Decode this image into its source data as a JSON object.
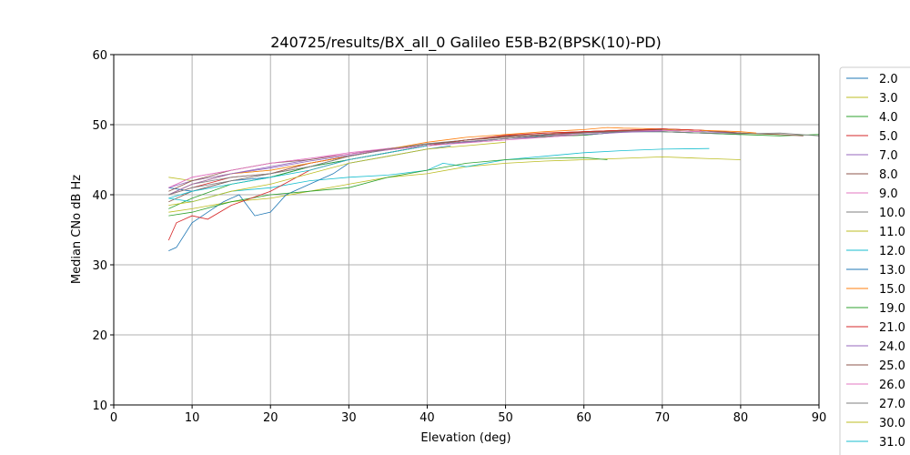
{
  "chart_data": {
    "type": "line",
    "title": "240725/results/BX_all_0 Galileo E5B-B2(BPSK(10)-PD)",
    "xlabel": "Elevation (deg)",
    "ylabel": "Median CNo dB Hz",
    "xlim": [
      0,
      90
    ],
    "ylim": [
      10,
      60
    ],
    "xticks": [
      0,
      10,
      20,
      30,
      40,
      50,
      60,
      70,
      80,
      90
    ],
    "yticks": [
      10,
      20,
      30,
      40,
      50,
      60
    ],
    "grid": true,
    "legend_position": "right (partially cut off)",
    "series": [
      {
        "name": "2.0",
        "color": "#1f77b4",
        "points": [
          [
            7,
            41
          ],
          [
            10,
            40.5
          ],
          [
            15,
            42
          ],
          [
            20,
            42.5
          ],
          [
            25,
            44
          ],
          [
            30,
            45
          ],
          [
            35,
            46
          ],
          [
            40,
            47
          ],
          [
            45,
            47.5
          ],
          [
            50,
            48
          ],
          [
            55,
            48.5
          ],
          [
            60,
            48.5
          ],
          [
            65,
            49
          ],
          [
            70,
            49
          ],
          [
            75,
            48.8
          ],
          [
            80,
            48.6
          ]
        ]
      },
      {
        "name": "3.0",
        "color": "#bcbd22",
        "points": [
          [
            7,
            42.5
          ],
          [
            10,
            42
          ],
          [
            15,
            43
          ],
          [
            20,
            43.5
          ],
          [
            25,
            44.5
          ],
          [
            30,
            45.5
          ],
          [
            35,
            46.5
          ],
          [
            40,
            47.2
          ],
          [
            45,
            47.8
          ],
          [
            50,
            48.2
          ],
          [
            55,
            48.6
          ],
          [
            60,
            49
          ],
          [
            65,
            49.2
          ],
          [
            70,
            49.3
          ],
          [
            75,
            49
          ],
          [
            80,
            48.8
          ],
          [
            85,
            48.6
          ]
        ]
      },
      {
        "name": "4.0",
        "color": "#2ca02c",
        "points": [
          [
            7,
            38
          ],
          [
            10,
            39.5
          ],
          [
            15,
            41.5
          ],
          [
            20,
            42.5
          ],
          [
            25,
            44
          ],
          [
            30,
            45
          ],
          [
            35,
            46
          ],
          [
            40,
            47
          ],
          [
            45,
            47.5
          ],
          [
            50,
            48
          ],
          [
            55,
            48.3
          ],
          [
            60,
            48.5
          ],
          [
            65,
            49
          ],
          [
            70,
            49
          ],
          [
            75,
            48.8
          ],
          [
            80,
            48.6
          ],
          [
            85,
            48.4
          ],
          [
            90,
            48.6
          ]
        ]
      },
      {
        "name": "5.0",
        "color": "#d62728",
        "points": [
          [
            7,
            40
          ],
          [
            10,
            41
          ],
          [
            15,
            42.5
          ],
          [
            20,
            43
          ],
          [
            25,
            44.5
          ],
          [
            30,
            45.5
          ],
          [
            35,
            46.5
          ],
          [
            40,
            47.2
          ],
          [
            45,
            47.8
          ],
          [
            50,
            48.2
          ],
          [
            55,
            48.6
          ],
          [
            60,
            49
          ],
          [
            65,
            49.2
          ],
          [
            70,
            49.4
          ],
          [
            75,
            49.2
          ],
          [
            80,
            48.8
          ]
        ]
      },
      {
        "name": "7.0",
        "color": "#9467bd",
        "points": [
          [
            7,
            41
          ],
          [
            10,
            42
          ],
          [
            15,
            43
          ],
          [
            20,
            44
          ],
          [
            25,
            45
          ],
          [
            30,
            45.8
          ],
          [
            35,
            46.6
          ],
          [
            40,
            47.2
          ],
          [
            45,
            47.6
          ],
          [
            50,
            48
          ],
          [
            55,
            48.4
          ],
          [
            60,
            48.8
          ],
          [
            65,
            49
          ],
          [
            70,
            49.2
          ],
          [
            75,
            49
          ],
          [
            80,
            48.8
          ]
        ]
      },
      {
        "name": "8.0",
        "color": "#8c564b",
        "points": [
          [
            7,
            39
          ],
          [
            10,
            40.5
          ],
          [
            15,
            42
          ],
          [
            20,
            43
          ],
          [
            25,
            44.5
          ],
          [
            30,
            45.5
          ],
          [
            35,
            46.5
          ],
          [
            40,
            47.2
          ],
          [
            45,
            47.8
          ],
          [
            50,
            48.4
          ],
          [
            55,
            48.8
          ],
          [
            60,
            49
          ],
          [
            65,
            49.2
          ],
          [
            70,
            49.4
          ],
          [
            75,
            49.2
          ],
          [
            80,
            48.8
          ],
          [
            85,
            48.6
          ],
          [
            88,
            48.4
          ]
        ]
      },
      {
        "name": "9.0",
        "color": "#e377c2",
        "points": [
          [
            7,
            41
          ],
          [
            10,
            42.5
          ],
          [
            15,
            43.5
          ],
          [
            20,
            44.5
          ],
          [
            25,
            45.2
          ],
          [
            30,
            46
          ],
          [
            35,
            46.6
          ],
          [
            40,
            47.2
          ],
          [
            45,
            47.6
          ],
          [
            50,
            48
          ],
          [
            55,
            48.4
          ],
          [
            60,
            48.8
          ],
          [
            65,
            49
          ],
          [
            70,
            49.2
          ],
          [
            75,
            49
          ]
        ]
      },
      {
        "name": "10.0",
        "color": "#7f7f7f",
        "points": [
          [
            7,
            40
          ],
          [
            10,
            41.5
          ],
          [
            15,
            42.5
          ],
          [
            20,
            43
          ],
          [
            25,
            44
          ],
          [
            30,
            45.5
          ],
          [
            35,
            46.5
          ],
          [
            40,
            47.3
          ],
          [
            45,
            47.8
          ],
          [
            50,
            48.2
          ],
          [
            55,
            48.6
          ],
          [
            60,
            48.8
          ],
          [
            65,
            49
          ],
          [
            70,
            49
          ],
          [
            75,
            48.8
          ],
          [
            80,
            48.7
          ],
          [
            85,
            48.8
          ],
          [
            90,
            48.4
          ]
        ]
      },
      {
        "name": "11.0",
        "color": "#bcbd22",
        "points": [
          [
            7,
            37.5
          ],
          [
            10,
            38
          ],
          [
            15,
            39
          ],
          [
            20,
            39.5
          ],
          [
            25,
            40.5
          ],
          [
            30,
            41.5
          ],
          [
            35,
            42.5
          ],
          [
            40,
            43
          ],
          [
            45,
            44
          ],
          [
            50,
            44.5
          ],
          [
            55,
            44.8
          ],
          [
            60,
            45
          ],
          [
            65,
            45.2
          ],
          [
            70,
            45.4
          ],
          [
            75,
            45.2
          ],
          [
            80,
            45
          ]
        ]
      },
      {
        "name": "12.0",
        "color": "#17becf",
        "points": [
          [
            7,
            39.5
          ],
          [
            10,
            39
          ],
          [
            15,
            40.5
          ],
          [
            20,
            41
          ],
          [
            25,
            42
          ],
          [
            30,
            42.5
          ],
          [
            35,
            42.8
          ],
          [
            40,
            43.5
          ],
          [
            42,
            44.5
          ],
          [
            45,
            44
          ],
          [
            50,
            45
          ],
          [
            55,
            45.5
          ],
          [
            60,
            46
          ],
          [
            65,
            46.3
          ],
          [
            70,
            46.5
          ],
          [
            76,
            46.6
          ]
        ]
      },
      {
        "name": "13.0",
        "color": "#1f77b4",
        "points": [
          [
            7,
            32
          ],
          [
            8,
            32.5
          ],
          [
            10,
            36
          ],
          [
            12,
            37.5
          ],
          [
            14,
            39
          ],
          [
            16,
            40
          ],
          [
            18,
            37
          ],
          [
            20,
            37.5
          ],
          [
            22,
            40
          ],
          [
            25,
            41.5
          ],
          [
            28,
            43
          ],
          [
            30,
            44.5
          ],
          [
            35,
            45.5
          ],
          [
            40,
            46.5
          ],
          [
            43,
            47
          ]
        ]
      },
      {
        "name": "15.0",
        "color": "#ff7f0e",
        "points": [
          [
            7,
            40
          ],
          [
            10,
            41.5
          ],
          [
            15,
            43
          ],
          [
            20,
            43.5
          ],
          [
            25,
            44.5
          ],
          [
            30,
            45.5
          ],
          [
            35,
            46.5
          ],
          [
            40,
            47.5
          ],
          [
            45,
            48.2
          ],
          [
            50,
            48.6
          ],
          [
            55,
            49
          ],
          [
            60,
            49.3
          ],
          [
            63,
            49.6
          ],
          [
            65,
            49.5
          ],
          [
            70,
            49.4
          ],
          [
            75,
            49.2
          ],
          [
            80,
            49
          ],
          [
            82,
            48.8
          ]
        ]
      },
      {
        "name": "19.0",
        "color": "#2ca02c",
        "points": [
          [
            7,
            37
          ],
          [
            10,
            37.5
          ],
          [
            15,
            39
          ],
          [
            20,
            40
          ],
          [
            25,
            40.5
          ],
          [
            30,
            41
          ],
          [
            35,
            42.5
          ],
          [
            40,
            43.5
          ],
          [
            45,
            44.5
          ],
          [
            50,
            45
          ],
          [
            55,
            45.2
          ],
          [
            60,
            45.3
          ],
          [
            63,
            45
          ]
        ]
      },
      {
        "name": "21.0",
        "color": "#d62728",
        "points": [
          [
            7,
            33.5
          ],
          [
            8,
            36
          ],
          [
            10,
            37
          ],
          [
            12,
            36.5
          ],
          [
            15,
            38.5
          ],
          [
            20,
            40.5
          ],
          [
            25,
            43.5
          ],
          [
            30,
            45
          ],
          [
            35,
            46
          ],
          [
            40,
            47
          ],
          [
            45,
            47.8
          ],
          [
            50,
            48.5
          ],
          [
            55,
            48.8
          ],
          [
            60,
            49
          ],
          [
            65,
            49.2
          ],
          [
            70,
            49.4
          ],
          [
            75,
            49.2
          ]
        ]
      },
      {
        "name": "24.0",
        "color": "#9467bd",
        "points": [
          [
            7,
            40
          ],
          [
            10,
            41.5
          ],
          [
            15,
            43
          ],
          [
            20,
            43.8
          ],
          [
            25,
            44.8
          ],
          [
            30,
            45.6
          ],
          [
            35,
            46.4
          ],
          [
            40,
            47
          ],
          [
            45,
            47.5
          ],
          [
            50,
            48
          ],
          [
            55,
            48.2
          ],
          [
            60,
            48.6
          ],
          [
            65,
            48.9
          ],
          [
            70,
            49.1
          ]
        ]
      },
      {
        "name": "25.0",
        "color": "#8c564b",
        "points": [
          [
            7,
            40.5
          ],
          [
            10,
            42
          ],
          [
            15,
            43.5
          ],
          [
            20,
            44.5
          ],
          [
            25,
            45
          ],
          [
            30,
            45.8
          ],
          [
            35,
            46.5
          ],
          [
            40,
            47.2
          ],
          [
            45,
            47.8
          ],
          [
            50,
            48.3
          ],
          [
            55,
            48.6
          ],
          [
            60,
            48.9
          ],
          [
            65,
            49.1
          ],
          [
            70,
            49.3
          ]
        ]
      },
      {
        "name": "26.0",
        "color": "#e377c2",
        "points": [
          [
            7,
            41
          ],
          [
            10,
            42.5
          ],
          [
            15,
            43.5
          ],
          [
            20,
            44.5
          ],
          [
            25,
            45.2
          ],
          [
            30,
            45.8
          ],
          [
            35,
            46.4
          ],
          [
            40,
            47
          ],
          [
            45,
            47.4
          ],
          [
            50,
            47.8
          ],
          [
            55,
            48.2
          ],
          [
            60,
            48.6
          ]
        ]
      },
      {
        "name": "27.0",
        "color": "#7f7f7f",
        "points": [
          [
            7,
            40
          ],
          [
            10,
            41
          ],
          [
            15,
            42
          ],
          [
            20,
            43
          ],
          [
            25,
            44
          ],
          [
            30,
            45.5
          ],
          [
            35,
            46.5
          ],
          [
            40,
            47.2
          ],
          [
            45,
            47.6
          ],
          [
            50,
            48
          ],
          [
            55,
            48.4
          ],
          [
            60,
            48.6
          ]
        ]
      },
      {
        "name": "30.0",
        "color": "#bcbd22",
        "points": [
          [
            7,
            38.5
          ],
          [
            10,
            39
          ],
          [
            15,
            40.5
          ],
          [
            20,
            41.5
          ],
          [
            25,
            43
          ],
          [
            30,
            44.5
          ],
          [
            35,
            45.5
          ],
          [
            40,
            46.5
          ],
          [
            45,
            47
          ],
          [
            50,
            47.5
          ]
        ]
      },
      {
        "name": "31.0",
        "color": "#17becf",
        "points": [
          [
            7,
            39.5
          ],
          [
            10,
            40.5
          ],
          [
            15,
            41.5
          ],
          [
            20,
            42.5
          ],
          [
            25,
            43.5
          ],
          [
            30,
            45
          ],
          [
            35,
            46
          ],
          [
            40,
            47
          ]
        ]
      }
    ]
  }
}
